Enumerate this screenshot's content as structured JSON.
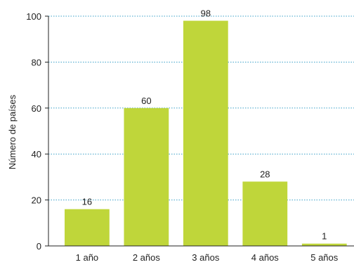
{
  "chart_data": {
    "type": "bar",
    "categories": [
      "1 año",
      "2 años",
      "3 años",
      "4 años",
      "5 años"
    ],
    "values": [
      16,
      60,
      98,
      28,
      1
    ],
    "data_labels": [
      "16",
      "60",
      "98",
      "28",
      "1"
    ],
    "title": "",
    "xlabel": "",
    "ylabel": "Número de países",
    "ylim": [
      0,
      100
    ],
    "yticks": [
      0,
      20,
      40,
      60,
      80,
      100
    ],
    "grid": "horizontal dotted",
    "legend": "none",
    "colors": {
      "bar": "#bfd63a",
      "grid": "#3aa0c8",
      "axis": "#222222",
      "text": "#222222"
    }
  }
}
